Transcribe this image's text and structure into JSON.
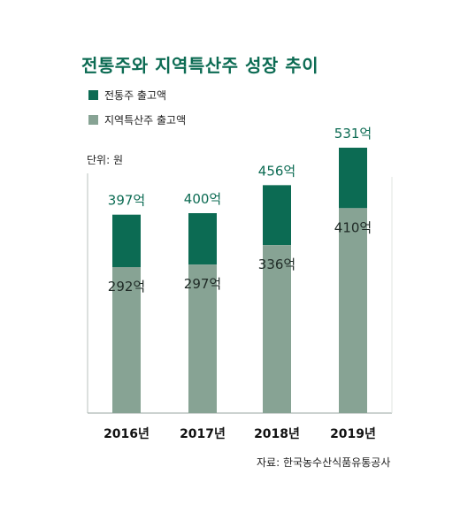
{
  "chart_data": {
    "type": "bar",
    "stacked": true,
    "title": "전통주와 지역특산주 성장 추이",
    "unit": "단위: 원",
    "source": "자료: 한국농수산식품유통공사",
    "categories": [
      "2016년",
      "2017년",
      "2018년",
      "2019년"
    ],
    "series": [
      {
        "name": "전통주 출고액",
        "color": "#0c6b53",
        "totals": [
          397,
          400,
          456,
          531
        ],
        "total_labels": [
          "397억",
          "400억",
          "456억",
          "531억"
        ]
      },
      {
        "name": "지역특산주 출고액",
        "color": "#87a394",
        "values": [
          292,
          297,
          336,
          410
        ],
        "value_labels": [
          "292억",
          "297억",
          "336억",
          "410억"
        ]
      }
    ],
    "ylim": [
      0,
      600
    ],
    "grid": false,
    "legend_position": "top-left"
  }
}
